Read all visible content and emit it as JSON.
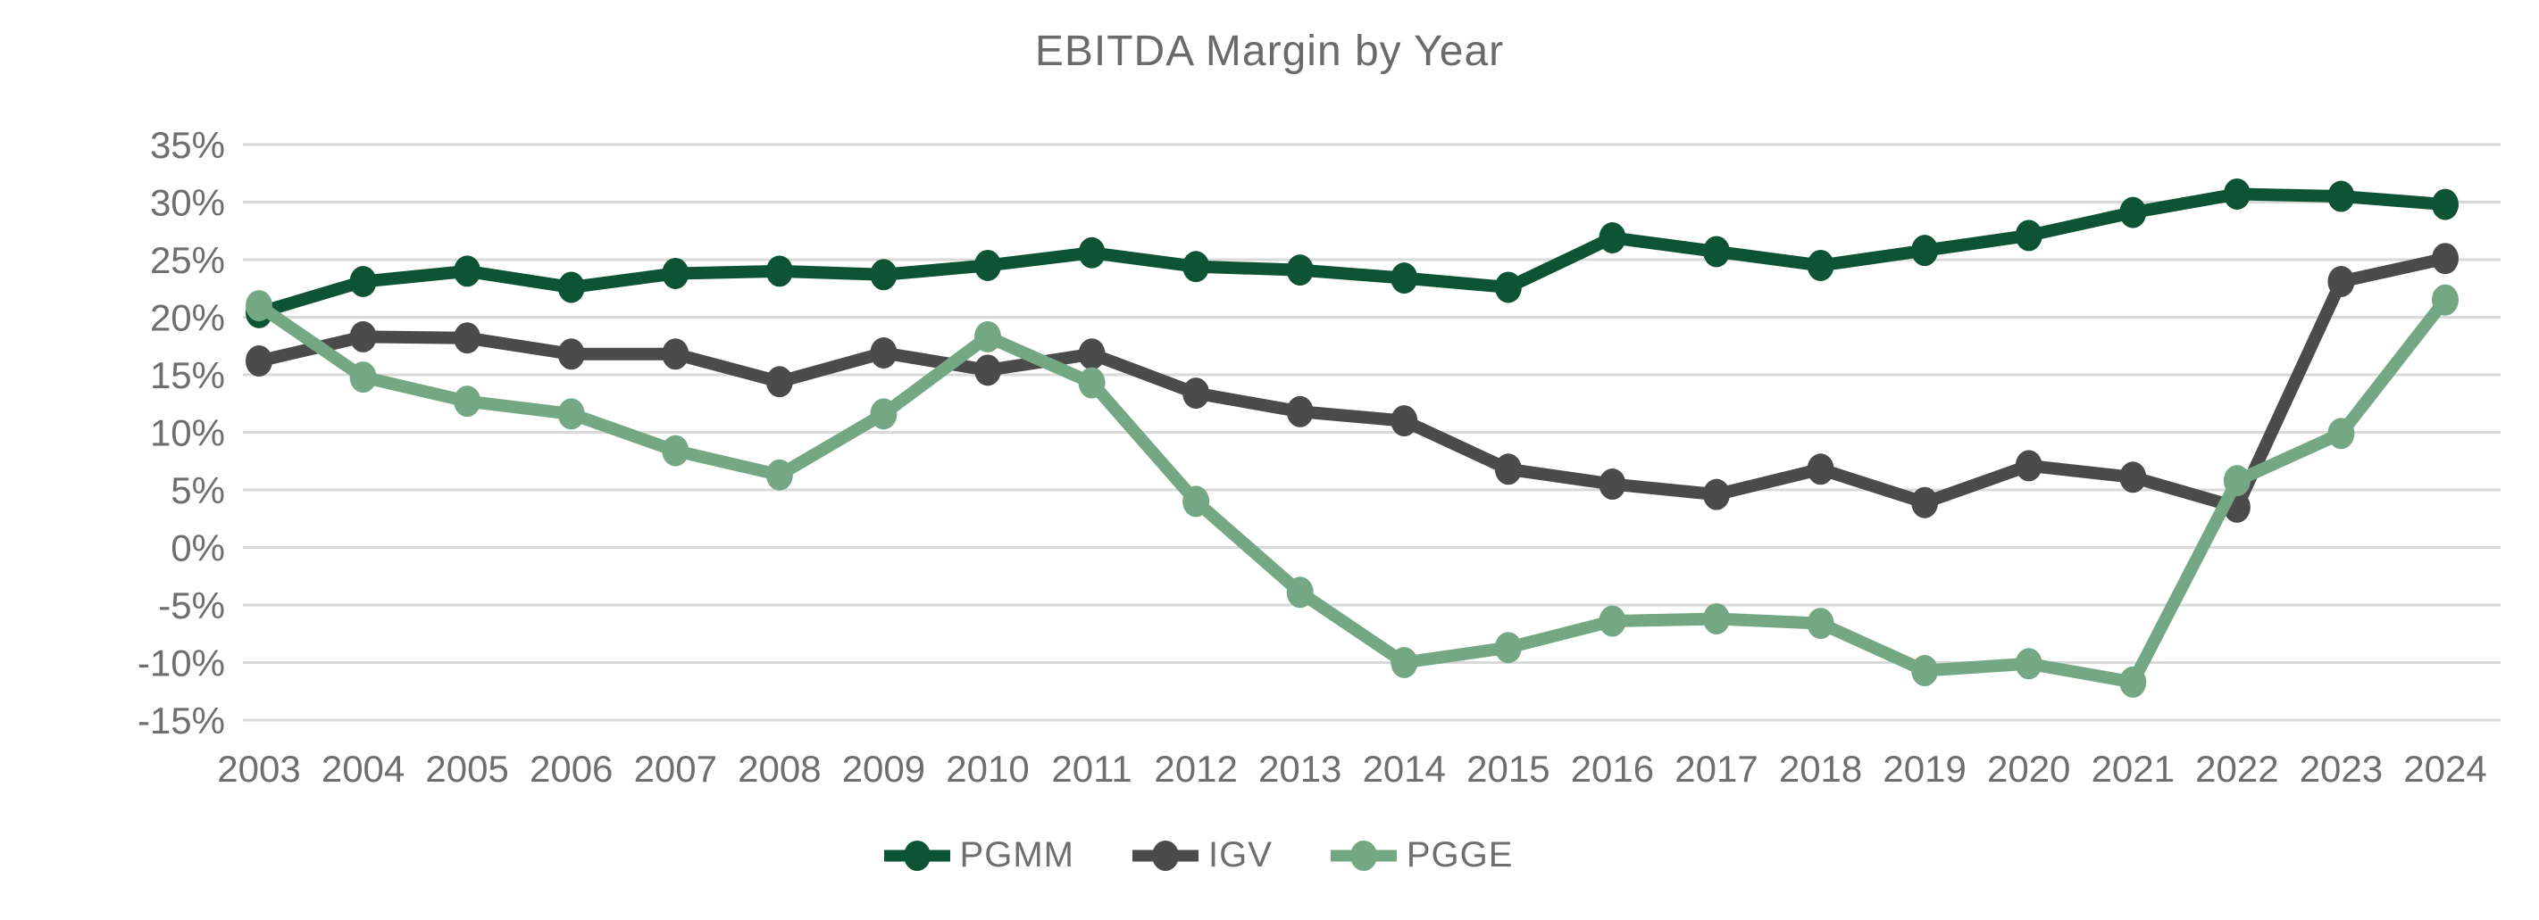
{
  "chart": {
    "title": "EBITDA Margin by Year"
  },
  "chart_data": {
    "type": "line",
    "title": "EBITDA Margin by Year",
    "xlabel": "",
    "ylabel": "",
    "x": [
      "2003",
      "2004",
      "2005",
      "2006",
      "2007",
      "2008",
      "2009",
      "2010",
      "2011",
      "2012",
      "2013",
      "2014",
      "2015",
      "2016",
      "2017",
      "2018",
      "2019",
      "2020",
      "2021",
      "2022",
      "2023",
      "2024"
    ],
    "series": [
      {
        "name": "PGMM",
        "color": "#0d5434",
        "values": [
          20.4,
          23.1,
          24.0,
          22.6,
          23.8,
          24.0,
          23.7,
          24.5,
          25.6,
          24.4,
          24.1,
          23.4,
          22.6,
          26.9,
          25.7,
          24.5,
          25.8,
          27.1,
          29.1,
          30.7,
          30.5,
          29.8
        ]
      },
      {
        "name": "IGV",
        "color": "#4b4b4b",
        "values": [
          16.2,
          18.3,
          18.2,
          16.8,
          16.8,
          14.4,
          16.9,
          15.4,
          16.8,
          13.4,
          11.8,
          11.0,
          6.8,
          5.5,
          4.6,
          6.8,
          3.9,
          7.1,
          6.1,
          3.5,
          23.1,
          25.1
        ]
      },
      {
        "name": "PGGE",
        "color": "#74a884",
        "values": [
          21.0,
          14.8,
          12.7,
          11.6,
          8.4,
          6.3,
          11.6,
          18.3,
          14.3,
          4.0,
          -3.9,
          -10.0,
          -8.7,
          -6.4,
          -6.2,
          -6.6,
          -10.7,
          -10.1,
          -11.7,
          5.8,
          9.9,
          21.5
        ]
      }
    ],
    "y_ticks": [
      "35%",
      "30%",
      "25%",
      "20%",
      "15%",
      "10%",
      "5%",
      "0%",
      "-5%",
      "-10%",
      "-15%"
    ],
    "y_tick_values": [
      35,
      30,
      25,
      20,
      15,
      10,
      5,
      0,
      -5,
      -10,
      -15
    ],
    "ylim": [
      -15,
      35
    ],
    "grid": "horizontal",
    "gridline_color": "#d9d9d9",
    "text_color": "#6e6e6e",
    "legend_position": "bottom"
  }
}
